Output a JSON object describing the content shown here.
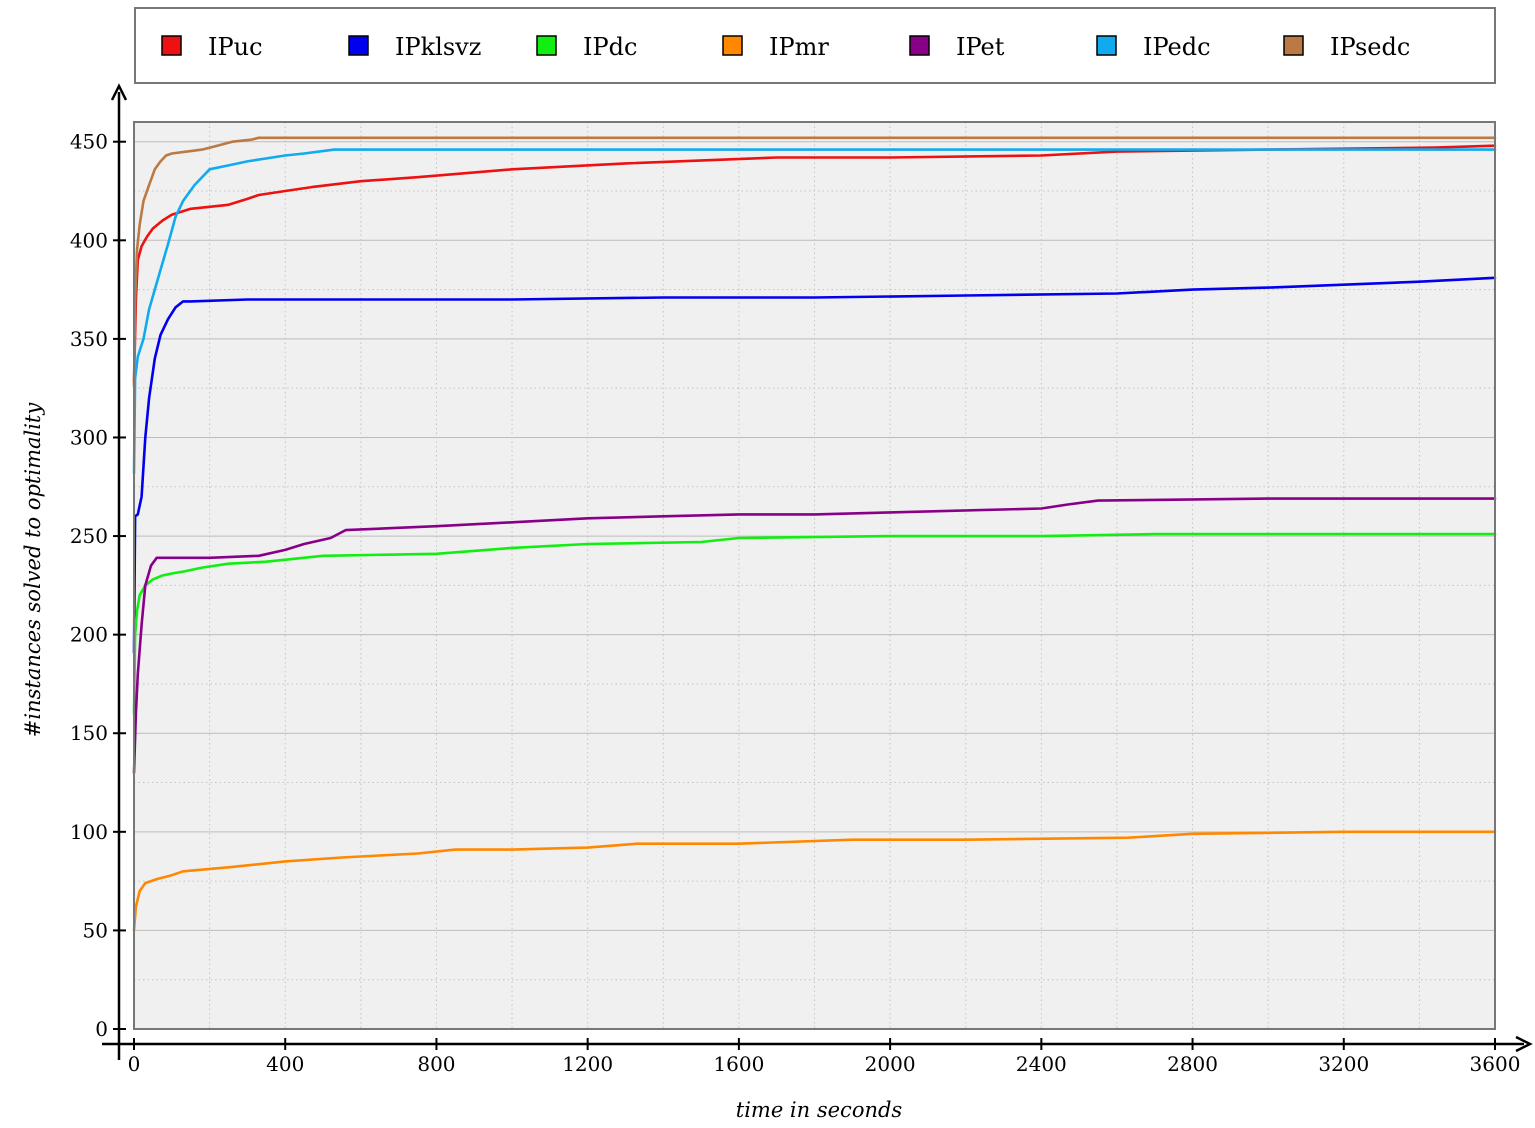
{
  "chart_data": {
    "type": "line",
    "title": "",
    "xlabel": "time in seconds",
    "ylabel": "#instances solved to optimality",
    "xlim": [
      0,
      3600
    ],
    "ylim": [
      0,
      460
    ],
    "x_ticks": [
      0,
      400,
      800,
      1200,
      1600,
      2000,
      2400,
      2800,
      3200,
      3600
    ],
    "y_ticks": [
      0,
      50,
      100,
      150,
      200,
      250,
      300,
      350,
      400,
      450
    ],
    "grid": true,
    "legend_position": "top",
    "series": [
      {
        "name": "IPuc",
        "color": "#ee1111",
        "x": [
          0,
          5,
          10,
          20,
          35,
          50,
          75,
          100,
          150,
          250,
          300,
          330,
          400,
          470,
          600,
          750,
          1000,
          1300,
          1700,
          2000,
          2400,
          2600,
          3000,
          3440,
          3600
        ],
        "y": [
          328,
          370,
          390,
          397,
          402,
          406,
          410,
          413,
          416,
          418,
          421,
          423,
          425,
          427,
          430,
          432,
          436,
          439,
          442,
          442,
          443,
          445,
          446,
          447,
          448
        ]
      },
      {
        "name": "IPklsvz",
        "color": "#0000ee",
        "x": [
          0,
          3,
          10,
          20,
          30,
          40,
          55,
          70,
          90,
          110,
          130,
          150,
          300,
          600,
          1000,
          1400,
          1800,
          2200,
          2600,
          2800,
          3000,
          3400,
          3600
        ],
        "y": [
          191,
          260,
          261,
          270,
          300,
          320,
          340,
          352,
          360,
          366,
          369,
          369,
          370,
          370,
          370,
          371,
          371,
          372,
          373,
          375,
          376,
          379,
          381
        ]
      },
      {
        "name": "IPdc",
        "color": "#11ee11",
        "x": [
          0,
          3,
          8,
          15,
          30,
          50,
          75,
          100,
          130,
          180,
          250,
          350,
          500,
          800,
          1000,
          1200,
          1500,
          1600,
          2000,
          2400,
          2700,
          3600
        ],
        "y": [
          160,
          200,
          212,
          220,
          225,
          228,
          230,
          231,
          232,
          234,
          236,
          237,
          240,
          241,
          244,
          246,
          247,
          249,
          250,
          250,
          251,
          251
        ]
      },
      {
        "name": "IPmr",
        "color": "#ff8800",
        "x": [
          0,
          5,
          15,
          30,
          60,
          100,
          130,
          250,
          400,
          550,
          750,
          850,
          1000,
          1200,
          1330,
          1600,
          1900,
          2200,
          2630,
          2800,
          3200,
          3600
        ],
        "y": [
          50,
          62,
          70,
          74,
          76,
          78,
          80,
          82,
          85,
          87,
          89,
          91,
          91,
          92,
          94,
          94,
          96,
          96,
          97,
          99,
          100,
          100
        ]
      },
      {
        "name": "IPet",
        "color": "#880088",
        "x": [
          0,
          5,
          10,
          20,
          30,
          45,
          60,
          80,
          200,
          330,
          400,
          450,
          520,
          560,
          800,
          1000,
          1200,
          1400,
          1600,
          1800,
          2000,
          2400,
          2470,
          2550,
          3000,
          3600
        ],
        "y": [
          130,
          160,
          180,
          205,
          225,
          235,
          239,
          239,
          239,
          240,
          243,
          246,
          249,
          253,
          255,
          257,
          259,
          260,
          261,
          261,
          262,
          264,
          266,
          268,
          269,
          269
        ]
      },
      {
        "name": "IPedc",
        "color": "#11aaee",
        "x": [
          0,
          3,
          10,
          25,
          40,
          55,
          70,
          90,
          110,
          130,
          160,
          200,
          250,
          300,
          400,
          450,
          530,
          800,
          1500,
          2200,
          2800,
          3600
        ],
        "y": [
          282,
          330,
          341,
          350,
          365,
          375,
          385,
          398,
          412,
          420,
          428,
          436,
          438,
          440,
          443,
          444,
          446,
          446,
          446,
          446,
          446,
          446
        ]
      },
      {
        "name": "IPsedc",
        "color": "#bb7a44",
        "x": [
          0,
          3,
          8,
          15,
          25,
          40,
          55,
          70,
          85,
          100,
          140,
          180,
          220,
          260,
          310,
          330,
          400,
          800,
          1600,
          2400,
          3600
        ],
        "y": [
          326,
          370,
          395,
          408,
          420,
          428,
          436,
          440,
          443,
          444,
          445,
          446,
          448,
          450,
          451,
          452,
          452,
          452,
          452,
          452,
          452
        ]
      }
    ]
  }
}
